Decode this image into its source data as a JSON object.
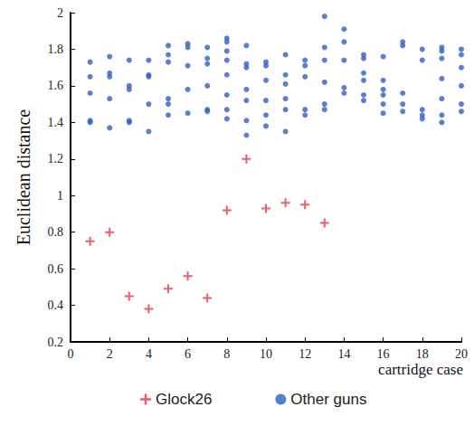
{
  "chart_data": {
    "type": "scatter",
    "x_label": "cartridge case",
    "y_label": "Euclidean distance",
    "xlim": [
      0,
      20
    ],
    "xticks": [
      0,
      2,
      4,
      6,
      8,
      10,
      12,
      14,
      16,
      18,
      20
    ],
    "ylim": [
      0.2,
      2
    ],
    "yticks": [
      0.2,
      0.4,
      0.6,
      0.8,
      1,
      1.2,
      1.4,
      1.6,
      1.8,
      2
    ],
    "grid": false,
    "legend": "bottom",
    "series": [
      {
        "name": "Glock26",
        "color": "#e8344a",
        "marker": "plus",
        "x": [
          1,
          2,
          3,
          4,
          5,
          6,
          7,
          8,
          9,
          10,
          11,
          12,
          13
        ],
        "values": [
          0.75,
          0.8,
          0.45,
          0.38,
          0.49,
          0.56,
          0.44,
          0.92,
          1.2,
          0.93,
          0.96,
          0.95,
          0.85
        ]
      },
      {
        "name": "Other guns",
        "color": "#2f5fc4",
        "marker": "circle",
        "x": [
          1,
          1,
          1,
          1,
          1,
          2,
          2,
          2,
          2,
          2,
          3,
          3,
          3,
          3,
          3,
          4,
          4,
          4,
          4,
          4,
          5,
          5,
          5,
          5,
          5,
          5,
          6,
          6,
          6,
          6,
          6,
          7,
          7,
          7,
          7,
          7,
          7,
          8,
          8,
          8,
          8,
          8,
          8,
          8,
          8,
          9,
          9,
          9,
          9,
          9,
          9,
          9,
          10,
          10,
          10,
          10,
          10,
          10,
          11,
          11,
          11,
          11,
          11,
          11,
          12,
          12,
          12,
          12,
          12,
          13,
          13,
          13,
          13,
          13,
          13,
          14,
          14,
          14,
          14,
          14,
          15,
          15,
          15,
          15,
          15,
          15,
          16,
          16,
          16,
          16,
          16,
          16,
          17,
          17,
          17,
          17,
          17,
          18,
          18,
          18,
          18,
          18,
          19,
          19,
          19,
          19,
          19,
          19,
          19,
          20,
          20,
          20,
          20,
          20,
          20
        ],
        "values": [
          1.73,
          1.65,
          1.56,
          1.41,
          1.4,
          1.76,
          1.67,
          1.65,
          1.53,
          1.37,
          1.74,
          1.6,
          1.58,
          1.41,
          1.4,
          1.74,
          1.66,
          1.65,
          1.5,
          1.35,
          1.82,
          1.77,
          1.73,
          1.53,
          1.5,
          1.44,
          1.83,
          1.81,
          1.71,
          1.58,
          1.45,
          1.81,
          1.75,
          1.72,
          1.6,
          1.46,
          1.47,
          1.86,
          1.84,
          1.79,
          1.74,
          1.66,
          1.55,
          1.47,
          1.42,
          1.82,
          1.72,
          1.7,
          1.58,
          1.52,
          1.41,
          1.33,
          1.73,
          1.71,
          1.63,
          1.52,
          1.44,
          1.38,
          1.77,
          1.66,
          1.61,
          1.53,
          1.47,
          1.35,
          1.74,
          1.71,
          1.65,
          1.47,
          1.44,
          1.98,
          1.81,
          1.74,
          1.62,
          1.5,
          1.47,
          1.91,
          1.84,
          1.74,
          1.59,
          1.56,
          1.77,
          1.75,
          1.67,
          1.63,
          1.55,
          1.52,
          1.76,
          1.63,
          1.58,
          1.55,
          1.5,
          1.45,
          1.84,
          1.82,
          1.56,
          1.5,
          1.46,
          1.8,
          1.74,
          1.47,
          1.44,
          1.42,
          1.81,
          1.79,
          1.75,
          1.64,
          1.53,
          1.44,
          1.4,
          1.8,
          1.77,
          1.7,
          1.6,
          1.5,
          1.46
        ]
      }
    ]
  }
}
